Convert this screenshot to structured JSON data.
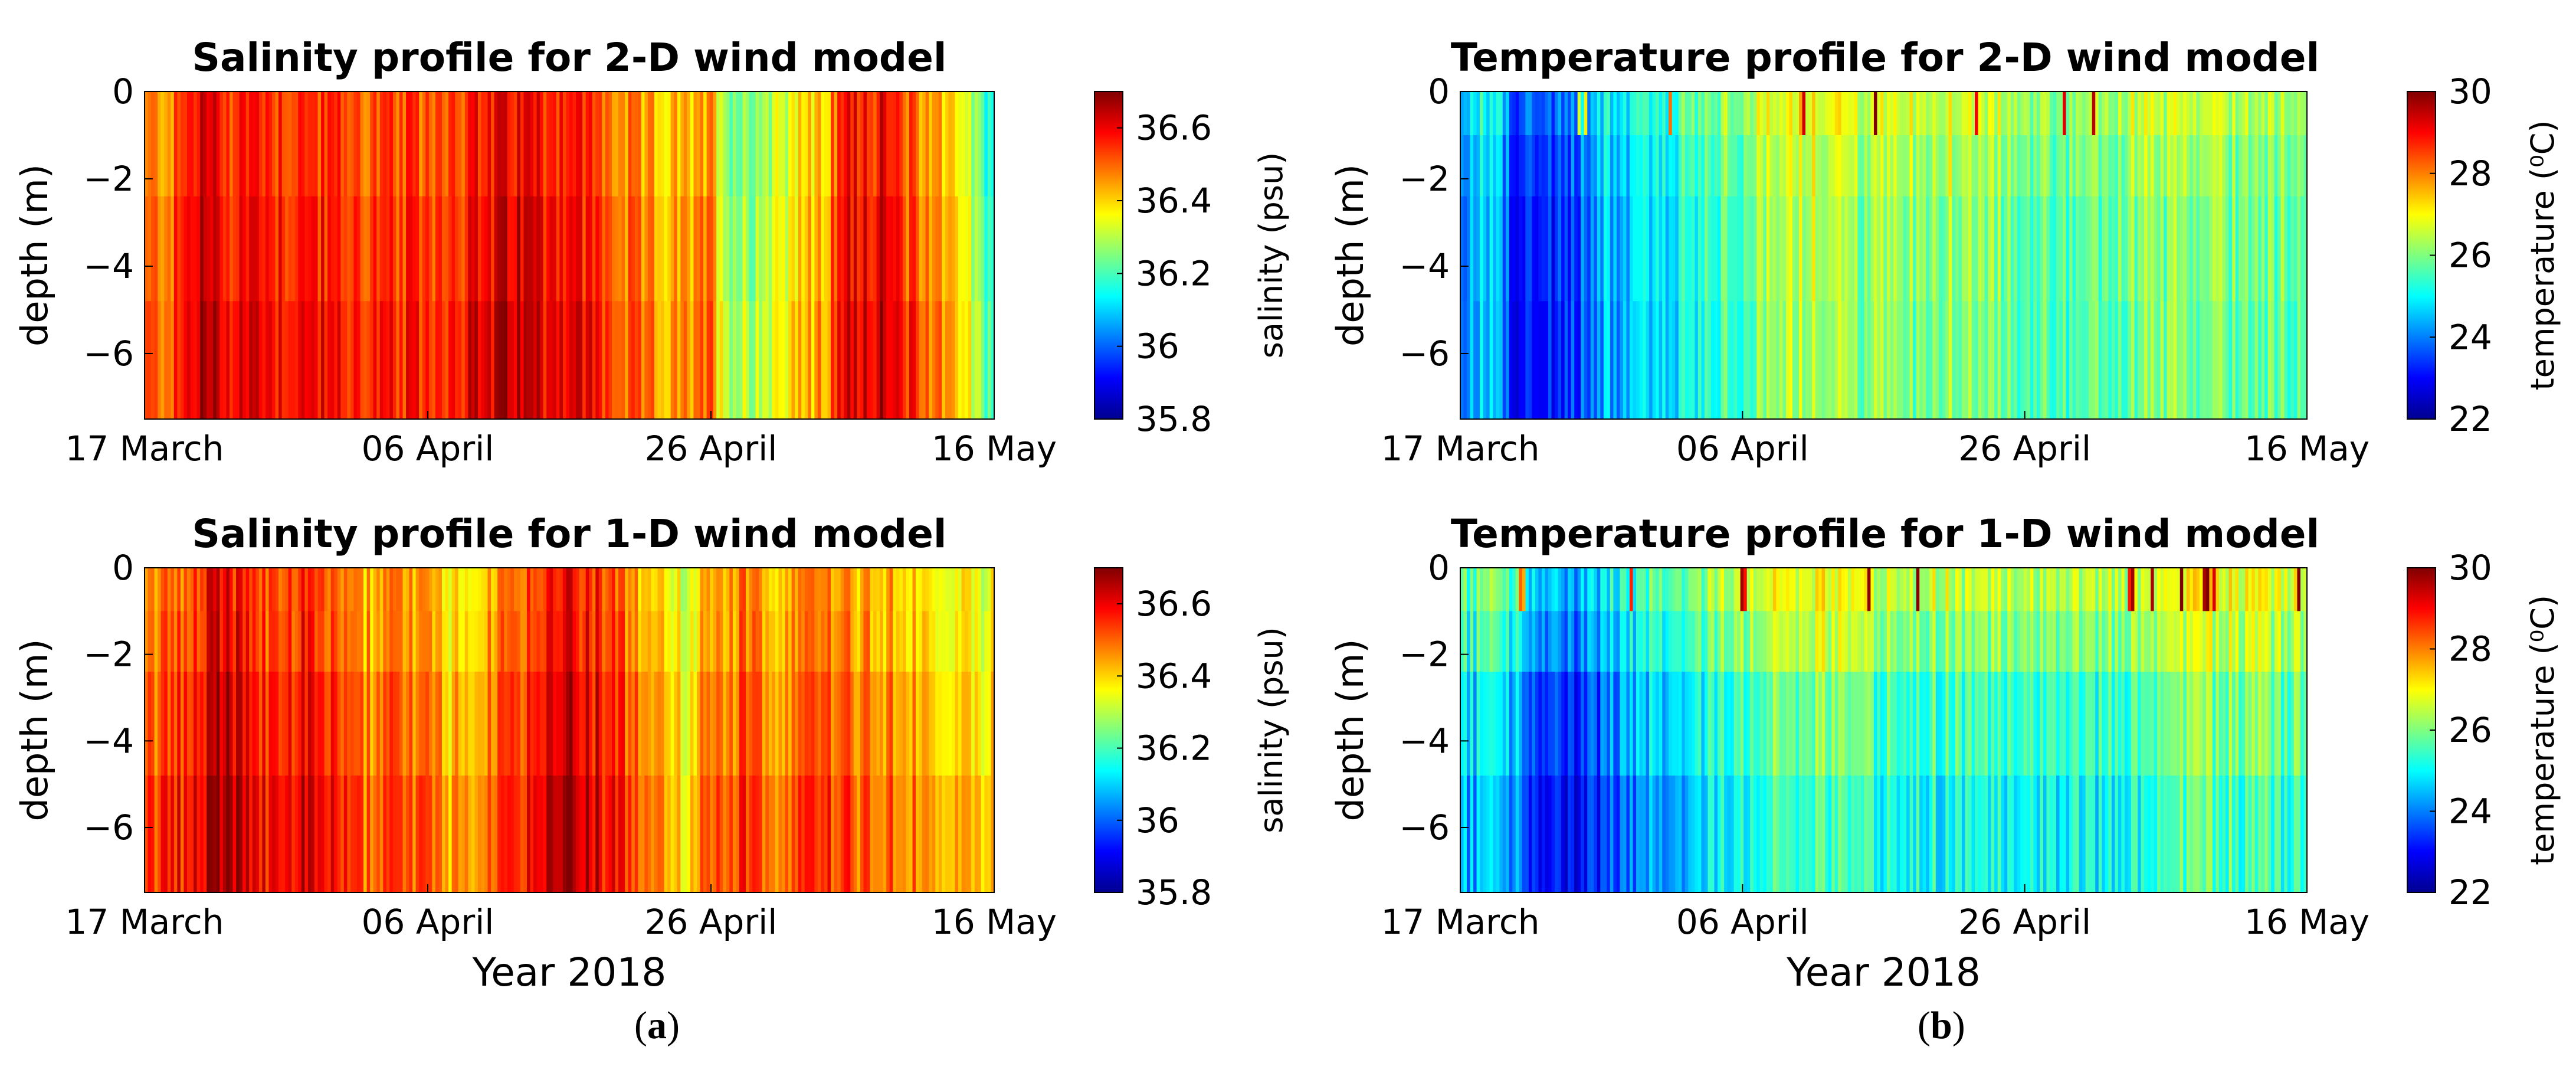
{
  "figure": {
    "panel_labels": {
      "a": "a",
      "b": "b"
    },
    "colors": {
      "axis": "#000000",
      "colormap": "jet",
      "jet_stops": [
        "#00008f",
        "#0000ff",
        "#007fff",
        "#00ffff",
        "#7fff7f",
        "#ffff00",
        "#ff7f00",
        "#ff0000",
        "#7f0000"
      ]
    }
  },
  "chart_data": [
    {
      "id": "sal2d",
      "type": "heatmap",
      "title": "Salinity profile for 2-D wind model",
      "xlabel": "",
      "ylabel": "depth (m)",
      "xticks": [
        "17 March",
        "06 April",
        "26 April",
        "16 May"
      ],
      "xtick_days": [
        0,
        20,
        40,
        60
      ],
      "xlim_days": [
        0,
        60
      ],
      "yticks": [
        0,
        -2,
        -4,
        -6
      ],
      "ylim": [
        -7.5,
        0
      ],
      "depth_layer_bounds": [
        0,
        -2.4,
        -4.8,
        -7.5
      ],
      "colorbar": {
        "label": "salinity (psu)",
        "ticks": [
          "36.6",
          "36.4",
          "36.2",
          "36",
          "35.8"
        ],
        "tick_values": [
          36.6,
          36.4,
          36.2,
          36.0,
          35.8
        ],
        "range": [
          35.8,
          36.7
        ]
      },
      "value_profile_by_day": [
        [
          0,
          36.45
        ],
        [
          2,
          36.48
        ],
        [
          4,
          36.62
        ],
        [
          6,
          36.55
        ],
        [
          8,
          36.58
        ],
        [
          10,
          36.55
        ],
        [
          12,
          36.55
        ],
        [
          14,
          36.52
        ],
        [
          16,
          36.52
        ],
        [
          18,
          36.5
        ],
        [
          20,
          36.52
        ],
        [
          22,
          36.55
        ],
        [
          24,
          36.56
        ],
        [
          26,
          36.6
        ],
        [
          28,
          36.58
        ],
        [
          30,
          36.58
        ],
        [
          32,
          36.52
        ],
        [
          34,
          36.45
        ],
        [
          36,
          36.42
        ],
        [
          38,
          36.4
        ],
        [
          40,
          36.45
        ],
        [
          41,
          36.3
        ],
        [
          42,
          36.25
        ],
        [
          44,
          36.3
        ],
        [
          46,
          36.38
        ],
        [
          48,
          36.4
        ],
        [
          49,
          36.52
        ],
        [
          50,
          36.6
        ],
        [
          52,
          36.58
        ],
        [
          54,
          36.5
        ],
        [
          56,
          36.45
        ],
        [
          58,
          36.35
        ],
        [
          59,
          36.2
        ],
        [
          60,
          36.15
        ]
      ],
      "layer_offsets": [
        0,
        0.02,
        0.04
      ]
    },
    {
      "id": "temp2d",
      "type": "heatmap",
      "title": "Temperature profile for 2-D wind model",
      "xlabel": "",
      "ylabel": "depth (m)",
      "xticks": [
        "17 March",
        "06 April",
        "26 April",
        "16 May"
      ],
      "xtick_days": [
        0,
        20,
        40,
        60
      ],
      "xlim_days": [
        0,
        60
      ],
      "yticks": [
        0,
        -2,
        -4,
        -6
      ],
      "ylim": [
        -7.5,
        0
      ],
      "depth_layer_bounds": [
        0,
        -1,
        -2.4,
        -4.8,
        -7.5
      ],
      "colorbar": {
        "label": "temperature (⁰C)",
        "ticks": [
          "30",
          "28",
          "26",
          "24",
          "22"
        ],
        "tick_values": [
          30,
          28,
          26,
          24,
          22
        ],
        "range": [
          22,
          30
        ]
      },
      "value_profile_by_day": [
        [
          0,
          24.6
        ],
        [
          2,
          24.8
        ],
        [
          3,
          24.2
        ],
        [
          4,
          23.4
        ],
        [
          6,
          23.2
        ],
        [
          8,
          23.8
        ],
        [
          10,
          24.5
        ],
        [
          12,
          24.8
        ],
        [
          14,
          25.0
        ],
        [
          16,
          25.3
        ],
        [
          18,
          25.6
        ],
        [
          20,
          26.0
        ],
        [
          22,
          26.6
        ],
        [
          24,
          26.8
        ],
        [
          26,
          26.6
        ],
        [
          28,
          26.4
        ],
        [
          30,
          26.3
        ],
        [
          32,
          26.3
        ],
        [
          34,
          26.5
        ],
        [
          36,
          26.5
        ],
        [
          38,
          26.2
        ],
        [
          40,
          26.0
        ],
        [
          42,
          25.8
        ],
        [
          44,
          25.9
        ],
        [
          46,
          26.0
        ],
        [
          48,
          26.2
        ],
        [
          50,
          26.2
        ],
        [
          52,
          26.3
        ],
        [
          54,
          26.0
        ],
        [
          56,
          26.2
        ],
        [
          58,
          26.1
        ],
        [
          60,
          26.2
        ]
      ],
      "layer_offsets": [
        0.3,
        0.0,
        -0.2,
        -0.3
      ]
    },
    {
      "id": "sal1d",
      "type": "heatmap",
      "title": "Salinity profile for 1-D wind model",
      "xlabel": "Year 2018",
      "ylabel": "depth (m)",
      "xticks": [
        "17 March",
        "06 April",
        "26 April",
        "16 May"
      ],
      "xtick_days": [
        0,
        20,
        40,
        60
      ],
      "xlim_days": [
        0,
        60
      ],
      "yticks": [
        0,
        -2,
        -4,
        -6
      ],
      "ylim": [
        -7.5,
        0
      ],
      "depth_layer_bounds": [
        0,
        -1,
        -2.4,
        -4.8,
        -7.5
      ],
      "colorbar": {
        "label": "salinity (psu)",
        "ticks": [
          "36.6",
          "36.4",
          "36.2",
          "36",
          "35.8"
        ],
        "tick_values": [
          36.6,
          36.4,
          36.2,
          36.0,
          35.8
        ],
        "range": [
          35.8,
          36.7
        ]
      },
      "value_profile_by_day": [
        [
          0,
          36.5
        ],
        [
          2,
          36.5
        ],
        [
          4,
          36.6
        ],
        [
          6,
          36.62
        ],
        [
          8,
          36.55
        ],
        [
          10,
          36.55
        ],
        [
          12,
          36.6
        ],
        [
          14,
          36.5
        ],
        [
          16,
          36.45
        ],
        [
          18,
          36.48
        ],
        [
          20,
          36.45
        ],
        [
          22,
          36.4
        ],
        [
          24,
          36.45
        ],
        [
          26,
          36.5
        ],
        [
          28,
          36.58
        ],
        [
          30,
          36.62
        ],
        [
          32,
          36.58
        ],
        [
          34,
          36.5
        ],
        [
          36,
          36.45
        ],
        [
          38,
          36.35
        ],
        [
          40,
          36.45
        ],
        [
          42,
          36.5
        ],
        [
          44,
          36.45
        ],
        [
          46,
          36.45
        ],
        [
          48,
          36.5
        ],
        [
          50,
          36.48
        ],
        [
          52,
          36.45
        ],
        [
          54,
          36.45
        ],
        [
          56,
          36.42
        ],
        [
          58,
          36.42
        ],
        [
          60,
          36.35
        ]
      ],
      "layer_offsets": [
        -0.03,
        -0.02,
        0.01,
        0.04
      ]
    },
    {
      "id": "temp1d",
      "type": "heatmap",
      "title": "Temperature profile for 1-D wind model",
      "xlabel": "Year 2018",
      "ylabel": "depth (m)",
      "xticks": [
        "17 March",
        "06 April",
        "26 April",
        "16 May"
      ],
      "xtick_days": [
        0,
        20,
        40,
        60
      ],
      "xlim_days": [
        0,
        60
      ],
      "yticks": [
        0,
        -2,
        -4,
        -6
      ],
      "ylim": [
        -7.5,
        0
      ],
      "depth_layer_bounds": [
        0,
        -1,
        -2.4,
        -4.8,
        -7.5
      ],
      "colorbar": {
        "label": "temperature (⁰C)",
        "ticks": [
          "30",
          "28",
          "26",
          "24",
          "22"
        ],
        "tick_values": [
          30,
          28,
          26,
          24,
          22
        ],
        "range": [
          22,
          30
        ]
      },
      "value_profile_by_day": [
        [
          0,
          24.6
        ],
        [
          2,
          25.0
        ],
        [
          4,
          24.5
        ],
        [
          6,
          23.3
        ],
        [
          8,
          23.3
        ],
        [
          10,
          23.8
        ],
        [
          12,
          24.3
        ],
        [
          14,
          24.7
        ],
        [
          16,
          25.0
        ],
        [
          18,
          25.3
        ],
        [
          20,
          25.5
        ],
        [
          22,
          25.8
        ],
        [
          24,
          26.0
        ],
        [
          26,
          26.0
        ],
        [
          28,
          25.7
        ],
        [
          30,
          25.6
        ],
        [
          32,
          25.6
        ],
        [
          34,
          25.5
        ],
        [
          36,
          25.5
        ],
        [
          38,
          25.4
        ],
        [
          40,
          25.5
        ],
        [
          42,
          25.5
        ],
        [
          44,
          25.4
        ],
        [
          46,
          25.4
        ],
        [
          48,
          25.6
        ],
        [
          50,
          25.8
        ],
        [
          52,
          26.0
        ],
        [
          54,
          26.0
        ],
        [
          56,
          26.0
        ],
        [
          58,
          25.7
        ],
        [
          60,
          25.8
        ]
      ],
      "layer_offsets": [
        1.0,
        0.6,
        0.0,
        -0.4
      ]
    }
  ]
}
